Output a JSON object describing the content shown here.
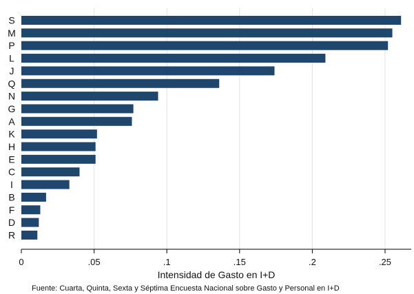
{
  "chart_data": {
    "type": "bar",
    "orientation": "horizontal",
    "categories": [
      "S",
      "M",
      "P",
      "L",
      "J",
      "Q",
      "N",
      "G",
      "A",
      "K",
      "H",
      "E",
      "C",
      "I",
      "B",
      "F",
      "D",
      "R"
    ],
    "values": [
      0.261,
      0.255,
      0.252,
      0.209,
      0.174,
      0.136,
      0.094,
      0.077,
      0.076,
      0.052,
      0.051,
      0.051,
      0.04,
      0.033,
      0.017,
      0.013,
      0.012,
      0.011
    ],
    "xlabel": "Intensidad de Gasto en I+D",
    "ylabel": "",
    "xlim": [
      0,
      0.268
    ],
    "xticks": [
      0,
      0.05,
      0.1,
      0.15,
      0.2,
      0.25
    ],
    "xtick_labels": [
      "0",
      ".05",
      ".1",
      ".15",
      ".2",
      ".25"
    ],
    "grid": "vertical",
    "bar_color": "#1f466d",
    "note": "Fuente: Cuarta, Quinta, Sexta y Séptima Encuesta Nacional sobre Gasto y Personal en I+D"
  }
}
